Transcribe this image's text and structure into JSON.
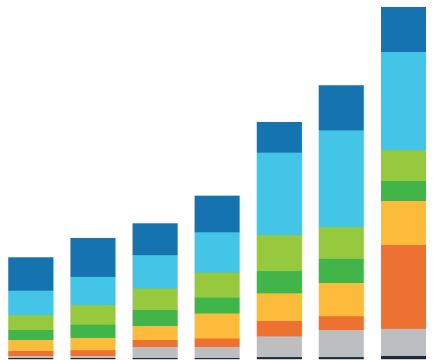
{
  "chart_data": {
    "type": "stacked-bar",
    "categories": [
      null,
      null,
      null,
      null,
      null,
      null,
      null
    ],
    "ylim": [
      0,
      508
    ],
    "series": [
      {
        "color": "#1c2b3c",
        "values": [
          2,
          2,
          2,
          2,
          3,
          3,
          5
        ]
      },
      {
        "color": "#bcbec0",
        "values": [
          3,
          3,
          16,
          16,
          30,
          39,
          39
        ]
      },
      {
        "color": "#ed7232",
        "values": [
          7,
          8,
          10,
          12,
          22,
          20,
          121
        ]
      },
      {
        "color": "#fdbb3c",
        "values": [
          16,
          18,
          20,
          36,
          40,
          48,
          63
        ]
      },
      {
        "color": "#41b44a",
        "values": [
          14,
          19,
          23,
          23,
          32,
          35,
          29
        ]
      },
      {
        "color": "#96c93d",
        "values": [
          22,
          28,
          31,
          36,
          52,
          46,
          45
        ]
      },
      {
        "color": "#42c5e6",
        "values": [
          35,
          41,
          48,
          58,
          119,
          139,
          141
        ]
      },
      {
        "color": "#1573b0",
        "values": [
          48,
          56,
          46,
          53,
          44,
          65,
          65
        ]
      }
    ]
  }
}
